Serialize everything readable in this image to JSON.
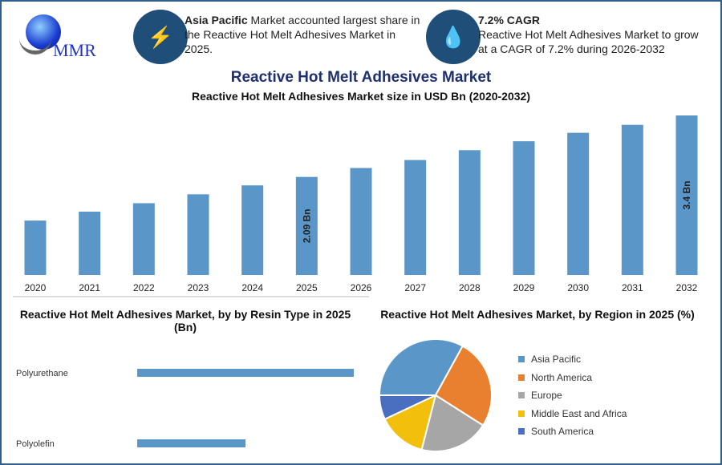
{
  "header": {
    "logo_text": "MMR",
    "info1": {
      "icon": "lightning-icon",
      "bold": "Asia Pacific",
      "text": " Market accounted largest share in the Reactive Hot Melt Adhesives Market in 2025."
    },
    "info2": {
      "icon": "flame-icon",
      "bold": "7.2% CAGR",
      "text": "Reactive Hot Melt Adhesives Market to grow at a CAGR of 7.2% during 2026-2032"
    }
  },
  "title": "Reactive Hot Melt Adhesives Market",
  "chart_data": [
    {
      "type": "bar",
      "title": "Reactive Hot Melt Adhesives Market size in USD Bn (2020-2032)",
      "categories": [
        "2020",
        "2021",
        "2022",
        "2023",
        "2024",
        "2025",
        "2026",
        "2027",
        "2028",
        "2029",
        "2030",
        "2031",
        "2032"
      ],
      "values": [
        1.16,
        1.35,
        1.53,
        1.72,
        1.91,
        2.09,
        2.28,
        2.45,
        2.66,
        2.85,
        3.03,
        3.2,
        3.4
      ],
      "data_labels": {
        "2025": "2.09 Bn",
        "2032": "3.4 Bn"
      },
      "color": "#5b96c8",
      "ylim": [
        0,
        3.4
      ],
      "grid": false
    },
    {
      "type": "bar",
      "orientation": "horizontal",
      "title": "Reactive Hot Melt Adhesives Market, by by Resin Type in 2025 (Bn)",
      "categories": [
        "Polyurethane",
        "Polyolefin"
      ],
      "values": [
        1.3,
        0.65
      ],
      "color": "#5b96c8"
    },
    {
      "type": "pie",
      "title": "Reactive Hot Melt Adhesives Market, by Region in 2025 (%)",
      "labels": [
        "Asia Pacific",
        "North America",
        "Europe",
        "Middle East and Africa",
        "South America"
      ],
      "values": [
        33,
        26,
        20,
        14,
        7
      ],
      "colors": [
        "#5b96c8",
        "#e8802f",
        "#a6a6a6",
        "#f2c00c",
        "#4a6fc0"
      ],
      "legend": "right"
    }
  ]
}
